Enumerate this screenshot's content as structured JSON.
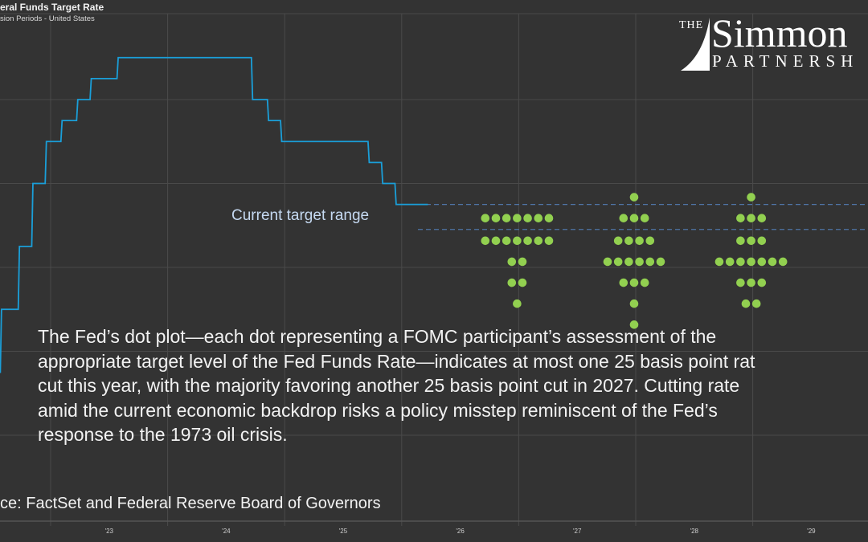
{
  "header": {
    "title": "eral Funds Target Rate",
    "subtitle": "sion Periods - United States"
  },
  "logo": {
    "the": "THE",
    "name": "Simmon",
    "partnership": "PARTNERSH"
  },
  "annotation": "Current target range",
  "paragraph_lines": [
    "The Fed’s dot plot—each dot representing a FOMC participant’s assessment of the",
    "appropriate target level of the Fed Funds Rate—indicates at most one 25 basis point rat",
    "cut this year, with the majority favoring another 25 basis point cut in 2027. Cutting rate",
    "amid the current economic backdrop risks a policy misstep reminiscent of the Fed’s",
    "response to the 1973 oil crisis."
  ],
  "source": "ce: FactSet and Federal Reserve Board of Governors",
  "colors": {
    "background": "#333333",
    "line": "#1a9fd9",
    "dots": "#92d050",
    "range": "#4f74a6",
    "grid": "#4a4a4a"
  },
  "chart_data": {
    "type": "line",
    "grid": true,
    "x_tick_labels": [
      "'23",
      "'24",
      "'25",
      "'26",
      "'27",
      "'28",
      "'29"
    ],
    "ylim": [
      0,
      6.2
    ],
    "series": [
      {
        "kind": "step",
        "points": [
          [
            "2022-06-16",
            1.75
          ],
          [
            "2022-07-28",
            2.5
          ],
          [
            "2022-09-22",
            3.25
          ],
          [
            "2022-11-03",
            4.0
          ],
          [
            "2022-12-15",
            4.5
          ],
          [
            "2023-02-02",
            4.75
          ],
          [
            "2023-03-23",
            5.0
          ],
          [
            "2023-05-04",
            5.25
          ],
          [
            "2023-07-27",
            5.5
          ],
          [
            "2024-09-19",
            5.0
          ],
          [
            "2024-11-08",
            4.75
          ],
          [
            "2024-12-19",
            4.5
          ],
          [
            "2025-09-18",
            4.25
          ],
          [
            "2025-10-30",
            4.0
          ],
          [
            "2025-12-11",
            3.75
          ],
          [
            "2026-03-20",
            3.75
          ]
        ]
      }
    ],
    "current_target_range": [
      3.5,
      3.75
    ],
    "dot_plot": [
      {
        "year": 2026,
        "dots": [
          [
            3.625,
            7
          ],
          [
            3.375,
            7
          ],
          [
            3.125,
            2
          ],
          [
            2.875,
            2
          ],
          [
            2.625,
            1
          ]
        ]
      },
      {
        "year": 2027,
        "dots": [
          [
            3.875,
            1
          ],
          [
            3.625,
            3
          ],
          [
            3.375,
            4
          ],
          [
            3.125,
            6
          ],
          [
            2.875,
            3
          ],
          [
            2.625,
            1
          ],
          [
            2.375,
            1
          ]
        ]
      },
      {
        "year": 2028,
        "dots": [
          [
            3.875,
            1
          ],
          [
            3.625,
            3
          ],
          [
            3.375,
            3
          ],
          [
            3.125,
            7
          ],
          [
            2.875,
            3
          ],
          [
            2.625,
            2
          ]
        ]
      }
    ]
  }
}
